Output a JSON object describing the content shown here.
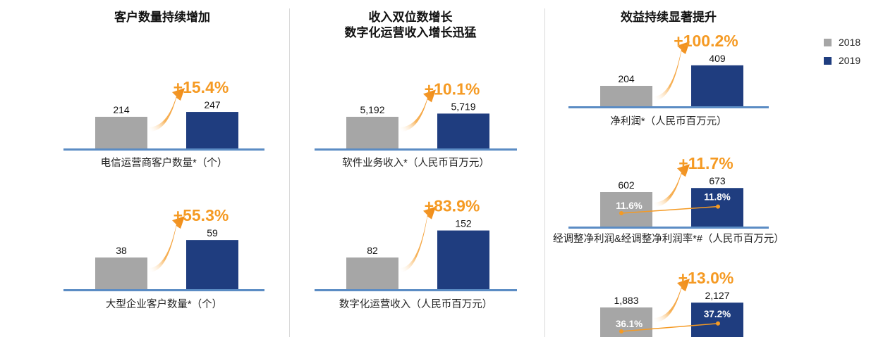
{
  "columns": [
    {
      "title_lines": [
        "客户数量持续增加"
      ]
    },
    {
      "title_lines": [
        "收入双位数增长",
        "数字化运营收入增长迅猛"
      ]
    },
    {
      "title_lines": [
        "效益持续显著提升"
      ]
    }
  ],
  "legend": [
    {
      "label": "2018",
      "color": "#a6a6a6"
    },
    {
      "label": "2019",
      "color": "#1f3d7f"
    }
  ],
  "colors": {
    "y2018": "#a6a6a6",
    "y2019": "#1f3d7f",
    "growth": "#f59a23",
    "baseline": "#5b8cc4",
    "margin_line": "#f59a23"
  },
  "chart_data": [
    {
      "type": "bar",
      "caption": "电信运营商客户数量*（个）",
      "categories": [
        "2018",
        "2019"
      ],
      "values": [
        214,
        247
      ],
      "value_labels": [
        "214",
        "247"
      ],
      "growth": "+15.4%"
    },
    {
      "type": "bar",
      "caption": "大型企业客户数量*（个）",
      "categories": [
        "2018",
        "2019"
      ],
      "values": [
        38,
        59
      ],
      "value_labels": [
        "38",
        "59"
      ],
      "growth": "+55.3%"
    },
    {
      "type": "bar",
      "caption": "软件业务收入*（人民币百万元）",
      "categories": [
        "2018",
        "2019"
      ],
      "values": [
        5192,
        5719
      ],
      "value_labels": [
        "5,192",
        "5,719"
      ],
      "growth": "+10.1%"
    },
    {
      "type": "bar",
      "caption": "数字化运营收入（人民币百万元）",
      "categories": [
        "2018",
        "2019"
      ],
      "values": [
        82,
        152
      ],
      "value_labels": [
        "82",
        "152"
      ],
      "growth": "+83.9%"
    },
    {
      "type": "bar",
      "caption": "净利润*（人民币百万元）",
      "categories": [
        "2018",
        "2019"
      ],
      "values": [
        204,
        409
      ],
      "value_labels": [
        "204",
        "409"
      ],
      "growth": "+100.2%"
    },
    {
      "type": "bar",
      "caption": "经调整净利润&经调整净利润率*#（人民币百万元）",
      "categories": [
        "2018",
        "2019"
      ],
      "values": [
        602,
        673
      ],
      "value_labels": [
        "602",
        "673"
      ],
      "growth": "+11.7%",
      "margin_labels": [
        "11.6%",
        "11.8%"
      ],
      "margins": [
        11.6,
        11.8
      ]
    },
    {
      "type": "bar",
      "caption": "",
      "categories": [
        "2018",
        "2019"
      ],
      "values": [
        1883,
        2127
      ],
      "value_labels": [
        "1,883",
        "2,127"
      ],
      "growth": "+13.0%",
      "margin_labels": [
        "36.1%",
        "37.2%"
      ],
      "margins": [
        36.1,
        37.2
      ]
    }
  ]
}
